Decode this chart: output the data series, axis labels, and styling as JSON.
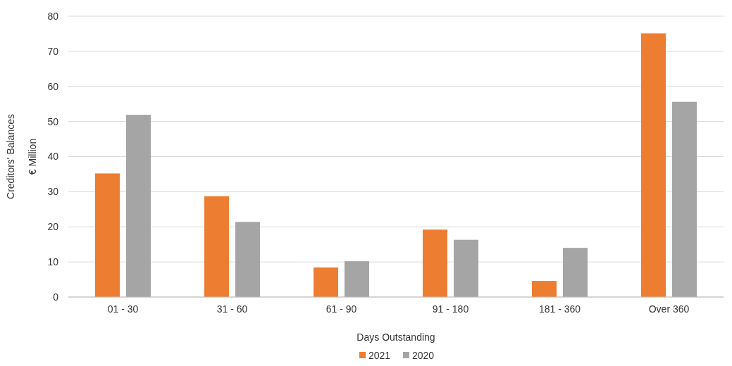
{
  "chart_data": {
    "type": "bar",
    "xlabel": "Days Outstanding",
    "ylabel": "Creditors' Balances\n€ Million",
    "categories": [
      "01 - 30",
      "31 - 60",
      "61 - 90",
      "91 - 180",
      "181 - 360",
      "Over 360"
    ],
    "series": [
      {
        "name": "2021",
        "color": "#ed7d31",
        "values": [
          35.2,
          28.7,
          8.4,
          19.2,
          4.6,
          75.1
        ]
      },
      {
        "name": "2020",
        "color": "#a5a5a5",
        "values": [
          51.9,
          21.4,
          10.2,
          16.3,
          14.0,
          55.6
        ]
      }
    ],
    "ylim": [
      0,
      80
    ],
    "yticks": [
      0,
      10,
      20,
      30,
      40,
      50,
      60,
      70,
      80
    ],
    "grid": "y",
    "legend": "bottom"
  }
}
